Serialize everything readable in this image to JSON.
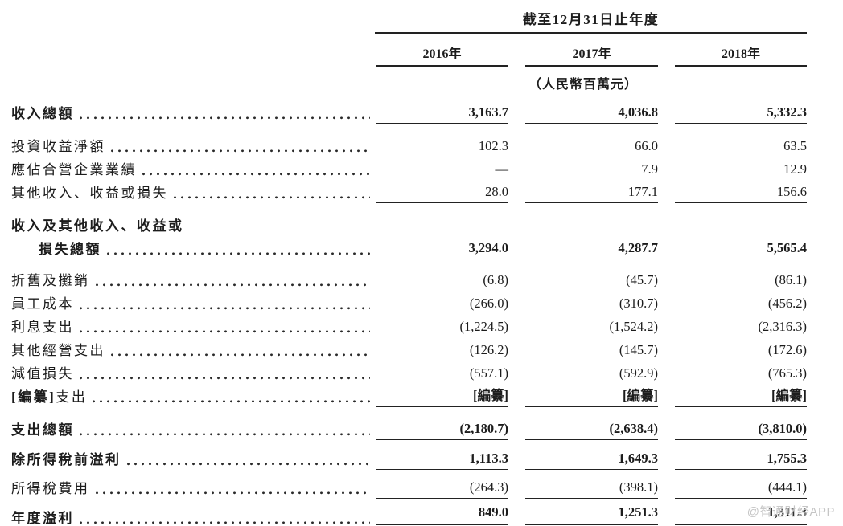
{
  "header": {
    "period_title": "截至12月31日止年度",
    "years": [
      "2016年",
      "2017年",
      "2018年"
    ],
    "unit_note": "（人民幣百萬元）"
  },
  "table": {
    "rows": [
      {
        "label": "收入總額",
        "values": [
          "3,163.7",
          "4,036.8",
          "5,332.3"
        ]
      },
      {
        "label": "投資收益淨額",
        "values": [
          "102.3",
          "66.0",
          "63.5"
        ]
      },
      {
        "label": "應佔合營企業業績",
        "values": [
          "—",
          "7.9",
          "12.9"
        ]
      },
      {
        "label": "其他收入、收益或損失",
        "values": [
          "28.0",
          "177.1",
          "156.6"
        ]
      },
      {
        "label": "收入及其他收入、收益或",
        "values": [
          "",
          "",
          ""
        ]
      },
      {
        "label": "損失總額",
        "values": [
          "3,294.0",
          "4,287.7",
          "5,565.4"
        ]
      },
      {
        "label": "折舊及攤銷",
        "values": [
          "(6.8)",
          "(45.7)",
          "(86.1)"
        ]
      },
      {
        "label": "員工成本",
        "values": [
          "(266.0)",
          "(310.7)",
          "(456.2)"
        ]
      },
      {
        "label": "利息支出",
        "values": [
          "(1,224.5)",
          "(1,524.2)",
          "(2,316.3)"
        ]
      },
      {
        "label": "其他經營支出",
        "values": [
          "(126.2)",
          "(145.7)",
          "(172.6)"
        ]
      },
      {
        "label": "減值損失",
        "values": [
          "(557.1)",
          "(592.9)",
          "(765.3)"
        ]
      },
      {
        "label_prefix": "[編纂]",
        "label": "支出",
        "values": [
          "[編纂]",
          "[編纂]",
          "[編纂]"
        ]
      },
      {
        "label": "支出總額",
        "values": [
          "(2,180.7)",
          "(2,638.4)",
          "(3,810.0)"
        ]
      },
      {
        "label": "除所得稅前溢利",
        "values": [
          "1,113.3",
          "1,649.3",
          "1,755.3"
        ]
      },
      {
        "label": "所得稅費用",
        "values": [
          "(264.3)",
          "(398.1)",
          "(444.1)"
        ]
      },
      {
        "label": "年度溢利",
        "values": [
          "849.0",
          "1,251.3",
          "1,311.3"
        ]
      }
    ]
  },
  "watermark": "@智通财经APP",
  "colors": {
    "text": "#1c1c1c",
    "rule": "#222222",
    "watermark": "#c5c5c5",
    "background": "#ffffff"
  }
}
